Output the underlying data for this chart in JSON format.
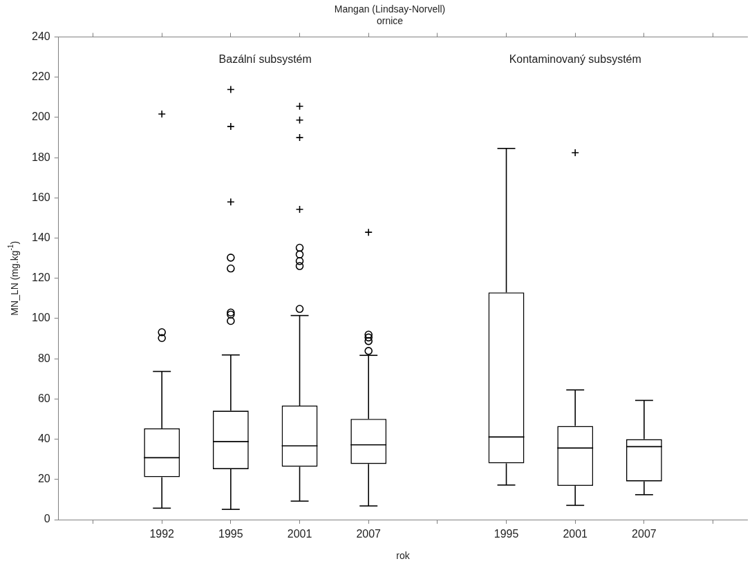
{
  "chart_data": {
    "type": "box",
    "title": "Mangan (Lindsay-Norvell)",
    "subtitle": "ornice",
    "xlabel": "rok",
    "ylabel": "MN_LN (mg.kg$^{-1}$)",
    "annotations": [
      "Bazální subsystém",
      "Kontaminovaný subsystém"
    ],
    "categories": [
      null,
      "1992",
      "1995",
      "2001",
      "2007",
      null,
      "1995",
      "2001",
      "2007",
      null
    ],
    "boxes": [
      null,
      {
        "low": 5.7,
        "q1": 21.1,
        "median": 30.8,
        "q3": 45.4,
        "high": 73.7,
        "outliers": [
          90.3,
          93.2,
          201.7
        ]
      },
      {
        "low": 5.1,
        "q1": 25.1,
        "median": 38.8,
        "q3": 54.2,
        "high": 81.9,
        "outliers": [
          98.8,
          102,
          103,
          124.9,
          130.3,
          158,
          195.5,
          213.9
        ]
      },
      {
        "low": 9.2,
        "q1": 26.3,
        "median": 36.7,
        "q3": 56.7,
        "high": 101.5,
        "outliers": [
          104.8,
          126.1,
          128.6,
          131.9,
          135.2,
          154.3,
          190,
          198.7,
          205.6
        ]
      },
      {
        "low": 6.8,
        "q1": 27.7,
        "median": 37.2,
        "q3": 50.1,
        "high": 81.7,
        "outliers": [
          83.9,
          88.8,
          90.6,
          92,
          142.9
        ]
      },
      null,
      {
        "low": 17.2,
        "q1": 28,
        "median": 41.1,
        "q3": 113,
        "high": 184.6
      },
      {
        "low": 7.1,
        "q1": 16.8,
        "median": 35.6,
        "q3": 46.6,
        "high": 64.5,
        "outliers": [
          182.5
        ]
      },
      {
        "low": 12.4,
        "q1": 19,
        "median": 36.3,
        "q3": 40,
        "high": 59.3
      },
      null
    ],
    "ylim": [
      0,
      240
    ],
    "yticks": [
      0,
      20,
      40,
      60,
      80,
      100,
      120,
      140,
      160,
      180,
      200,
      220,
      240
    ]
  }
}
